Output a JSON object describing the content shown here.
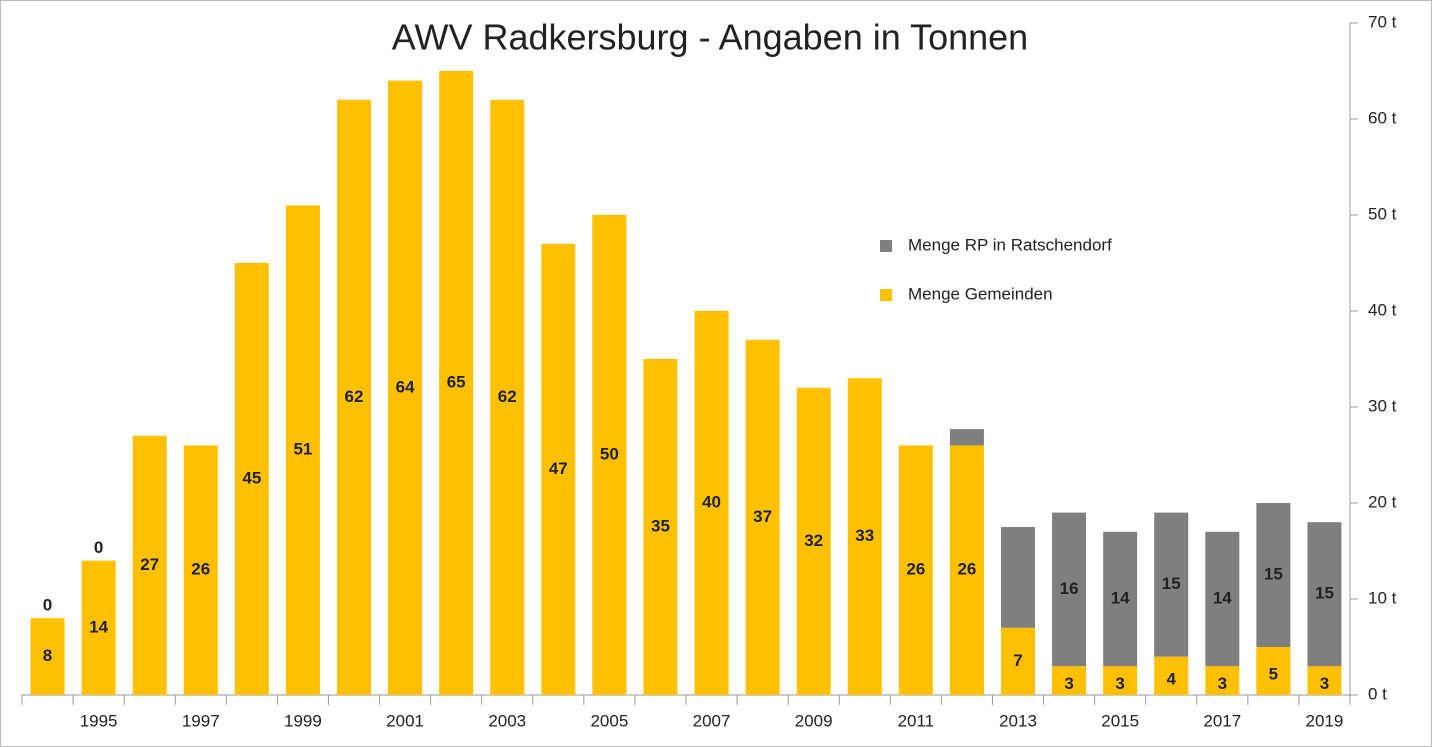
{
  "chart_data": {
    "type": "stacked_bar",
    "title": "AWV Radkersburg - Angaben in Tonnen",
    "categories": [
      null,
      "1995",
      null,
      "1997",
      null,
      "1999",
      null,
      "2001",
      null,
      "2003",
      null,
      "2005",
      null,
      "2007",
      null,
      "2009",
      null,
      "2011",
      null,
      "2013",
      null,
      "2015",
      null,
      "2017",
      null,
      "2019"
    ],
    "series": [
      {
        "name": "Menge Gemeinden",
        "color": "#ffc000",
        "values": [
          8,
          14,
          27,
          26,
          45,
          51,
          62,
          64,
          65,
          62,
          47,
          50,
          35,
          40,
          37,
          32,
          33,
          26,
          26,
          7,
          3,
          3,
          4,
          3,
          5,
          3
        ]
      },
      {
        "name": "Menge RP in Ratschendorf",
        "color": "#7f7f7f",
        "values": [
          0,
          0,
          null,
          null,
          null,
          null,
          null,
          null,
          null,
          null,
          null,
          null,
          null,
          null,
          null,
          null,
          null,
          null,
          1.7,
          10.5,
          16,
          14,
          15,
          14,
          15,
          15
        ],
        "value_labels": [
          "0",
          "0",
          null,
          null,
          null,
          null,
          null,
          null,
          null,
          null,
          null,
          null,
          null,
          null,
          null,
          null,
          null,
          null,
          null,
          null,
          "16",
          "14",
          "15",
          "14",
          "15",
          "15"
        ]
      }
    ],
    "ylim": [
      0,
      70
    ],
    "yticks": [
      {
        "value": 0,
        "label": "0 t"
      },
      {
        "value": 10,
        "label": "10 t"
      },
      {
        "value": 20,
        "label": "20 t"
      },
      {
        "value": 30,
        "label": "30 t"
      },
      {
        "value": 40,
        "label": "40 t"
      },
      {
        "value": 50,
        "label": "50 t"
      },
      {
        "value": 60,
        "label": "60 t"
      },
      {
        "value": 70,
        "label": "70 t"
      }
    ],
    "y_axis_side": "right",
    "legend": "right",
    "grid": false
  }
}
